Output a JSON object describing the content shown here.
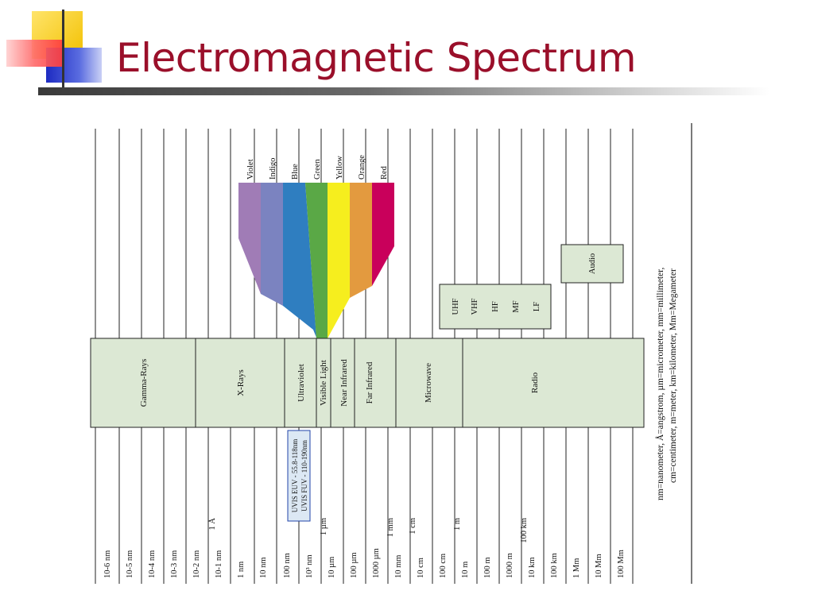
{
  "title": "Electromagnetic Spectrum",
  "colors": {
    "title": "#9a0f2a",
    "band_fill": "#dce8d4",
    "decoration": [
      "#f6c400",
      "#ff5a5a",
      "#2233cc"
    ],
    "spectrum": {
      "Violet": "#a07cb6",
      "Indigo": "#7b83c0",
      "Blue": "#2f7ec0",
      "Green": "#5aa846",
      "Yellow": "#f6ee1e",
      "Orange": "#e39a3f",
      "Red": "#c9005b"
    }
  },
  "wavelengths": [
    "10-6 nm",
    "10-5 nm",
    "10-4 nm",
    "10-3 nm",
    "10-2 nm",
    "10-1 nm",
    "1 nm",
    "10 nm",
    "100 nm",
    "10³ nm",
    "10 µm",
    "100 µm",
    "1000 µm",
    "10 mm",
    "10 cm",
    "100 cm",
    "10 m",
    "100 m",
    "1000 m",
    "10 km",
    "100 km",
    "1 Mm",
    "10 Mm",
    "100 Mm"
  ],
  "equivalents": [
    "1 Å",
    "1 µm",
    "1 mm",
    "1 cm",
    "1 m",
    "100 km"
  ],
  "bands": [
    "Gamma-Rays",
    "X-Rays",
    "Ultraviolet",
    "Visible Light",
    "Near Infrared",
    "Far Infrared",
    "Microwave",
    "Radio"
  ],
  "colors_order": [
    "Violet",
    "Indigo",
    "Blue",
    "Green",
    "Yellow",
    "Orange",
    "Red"
  ],
  "radio_subbands": [
    "UHF",
    "VHF",
    "HF",
    "MF",
    "LF"
  ],
  "audio": "Audio",
  "uvis": [
    "UVIS EUV - 55.8-118nm",
    "UVIS FUV - 110-190nm"
  ],
  "legend": [
    "nm=nanometer, Å=angstrom, µm=micrometer, mm=millimeter,",
    "cm=centimeter, m=meter, km=kilometer, Mm=Megameter"
  ]
}
